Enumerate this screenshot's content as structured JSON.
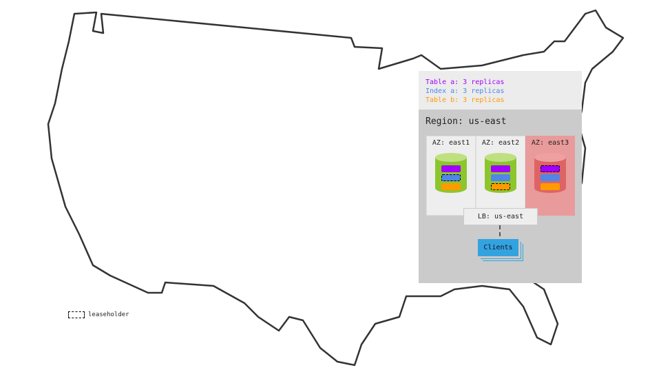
{
  "legend": {
    "items": [
      {
        "label": "Table a: 3 replicas",
        "color": "#a000ff"
      },
      {
        "label": "Index a: 3 replicas",
        "color": "#4f86e8"
      },
      {
        "label": "Table b: 3 replicas",
        "color": "#ff9a00"
      }
    ]
  },
  "region": {
    "title": "Region: us-east"
  },
  "azs": [
    {
      "label": "AZ: east1",
      "status": "up",
      "leaseholder": "index-a"
    },
    {
      "label": "AZ: east2",
      "status": "up",
      "leaseholder": "table-b"
    },
    {
      "label": "AZ: east3",
      "status": "down",
      "leaseholder": "table-a"
    }
  ],
  "lb": {
    "label": "LB: us-east"
  },
  "clients": {
    "label": "Clients"
  },
  "leaseholder_legend": {
    "label": "leaseholder"
  },
  "colors": {
    "node_up": "#8cc62c",
    "node_down": "#dd6464",
    "az_down_bg": "#e99a9a",
    "clients": "#33a3e0"
  }
}
